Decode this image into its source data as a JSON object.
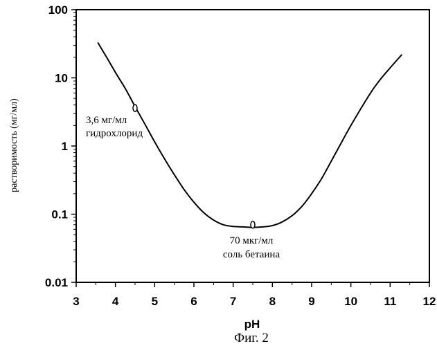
{
  "chart_data": {
    "type": "line",
    "title": "",
    "xlabel": "pH",
    "ylabel": "растворимость (мг/мл)",
    "y_scale": "log",
    "xlim": [
      3,
      12
    ],
    "ylim": [
      0.01,
      100
    ],
    "x_ticks": [
      {
        "value": 3,
        "label": "3"
      },
      {
        "value": 4,
        "label": "4"
      },
      {
        "value": 5,
        "label": "5"
      },
      {
        "value": 6,
        "label": "6"
      },
      {
        "value": 7,
        "label": "7"
      },
      {
        "value": 8,
        "label": "8"
      },
      {
        "value": 9,
        "label": "9"
      },
      {
        "value": 10,
        "label": "10"
      },
      {
        "value": 11,
        "label": "11"
      },
      {
        "value": 12,
        "label": "12"
      }
    ],
    "y_ticks": [
      {
        "value": 0.01,
        "label": "0.01"
      },
      {
        "value": 0.1,
        "label": "0.1"
      },
      {
        "value": 1,
        "label": "1"
      },
      {
        "value": 10,
        "label": "10"
      },
      {
        "value": 100,
        "label": "100"
      }
    ],
    "grid": false,
    "series": [
      {
        "x": [
          3.55,
          3.8,
          4.0,
          4.25,
          4.5,
          4.75,
          5.0,
          5.25,
          5.5,
          5.75,
          6.0,
          6.25,
          6.5,
          6.75,
          7.0,
          7.25,
          7.5,
          7.75,
          8.0,
          8.25,
          8.5,
          8.75,
          9.0,
          9.25,
          9.5,
          9.75,
          10.0,
          10.25,
          10.5,
          10.75,
          11.0,
          11.3
        ],
        "y": [
          33,
          19,
          12,
          7,
          3.8,
          2.1,
          1.15,
          0.65,
          0.38,
          0.23,
          0.15,
          0.105,
          0.082,
          0.07,
          0.066,
          0.065,
          0.064,
          0.065,
          0.068,
          0.077,
          0.095,
          0.13,
          0.2,
          0.33,
          0.6,
          1.1,
          2.0,
          3.5,
          6.0,
          9.5,
          14,
          22
        ]
      }
    ],
    "annotations": [
      {
        "x": 4.5,
        "y": 3.6,
        "lines": [
          "3,6 мг/мл",
          "гидрохлорид"
        ]
      },
      {
        "x": 7.5,
        "y": 0.07,
        "lines": [
          "70 мкг/мл",
          "соль бетаина"
        ]
      }
    ]
  },
  "figure": {
    "caption": "Фиг. 2"
  }
}
